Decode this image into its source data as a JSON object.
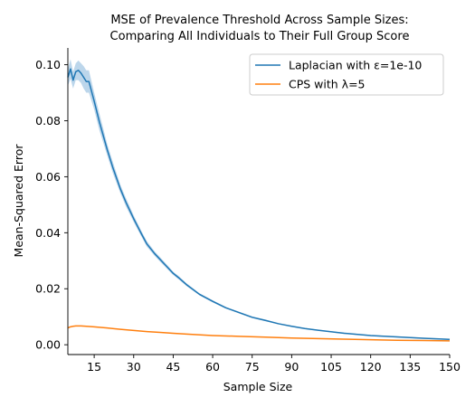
{
  "chart_data": {
    "type": "line",
    "title_lines": [
      "MSE of Prevalence Threshold Across Sample Sizes:",
      "Comparing All Individuals to Their Full Group Score"
    ],
    "xlabel": "Sample Size",
    "ylabel": "Mean-Squared Error",
    "xlim": [
      5,
      150
    ],
    "ylim": [
      -0.0035,
      0.106
    ],
    "xticks": [
      15,
      30,
      45,
      60,
      75,
      90,
      105,
      120,
      135,
      150
    ],
    "yticks": [
      0.0,
      0.02,
      0.04,
      0.06,
      0.08,
      0.1
    ],
    "ytick_labels": [
      "0.00",
      "0.02",
      "0.04",
      "0.06",
      "0.08",
      "0.10"
    ],
    "grid": false,
    "legend_position": "top-right",
    "series": [
      {
        "name": "Laplacian with ε=1e-10",
        "color": "#1f77b4",
        "band_color": "#a6c8e4",
        "x": [
          5,
          6,
          7,
          8,
          9,
          10,
          11,
          12,
          13,
          15,
          17,
          20,
          22,
          25,
          27,
          30,
          33,
          35,
          38,
          40,
          43,
          45,
          47,
          50,
          55,
          60,
          65,
          70,
          75,
          80,
          85,
          90,
          95,
          100,
          110,
          120,
          130,
          140,
          150
        ],
        "values": [
          0.0955,
          0.0985,
          0.0945,
          0.0975,
          0.098,
          0.097,
          0.0955,
          0.094,
          0.094,
          0.087,
          0.0795,
          0.0695,
          0.0635,
          0.0555,
          0.051,
          0.045,
          0.0395,
          0.036,
          0.0325,
          0.0305,
          0.0275,
          0.0255,
          0.024,
          0.0215,
          0.018,
          0.0155,
          0.0132,
          0.0115,
          0.0098,
          0.0087,
          0.0075,
          0.0066,
          0.0058,
          0.0052,
          0.0041,
          0.0033,
          0.0028,
          0.0023,
          0.0019
        ],
        "band_lower": [
          0.0925,
          0.095,
          0.0915,
          0.0945,
          0.0945,
          0.0935,
          0.0915,
          0.09,
          0.09,
          0.084,
          0.0765,
          0.0675,
          0.0615,
          0.054,
          0.0495,
          0.0438,
          0.0385,
          0.035,
          0.0317,
          0.0297,
          0.0268,
          0.0249,
          0.0234,
          0.021,
          0.0176,
          0.0151,
          0.0129,
          0.0112,
          0.0095,
          0.0084,
          0.0073,
          0.0064,
          0.0056,
          0.005,
          0.0039,
          0.0031,
          0.0026,
          0.0021,
          0.0017
        ],
        "band_upper": [
          0.0985,
          0.102,
          0.0975,
          0.1005,
          0.1015,
          0.1005,
          0.0995,
          0.098,
          0.098,
          0.09,
          0.0825,
          0.0715,
          0.0655,
          0.057,
          0.0525,
          0.0462,
          0.0405,
          0.037,
          0.0333,
          0.0313,
          0.0282,
          0.0261,
          0.0246,
          0.022,
          0.0184,
          0.0159,
          0.0135,
          0.0118,
          0.0101,
          0.009,
          0.0077,
          0.0068,
          0.006,
          0.0054,
          0.0043,
          0.0035,
          0.003,
          0.0025,
          0.0021
        ]
      },
      {
        "name": "CPS with λ=5",
        "color": "#ff7f0e",
        "x": [
          5,
          6,
          7,
          8,
          10,
          12,
          15,
          20,
          25,
          30,
          35,
          40,
          45,
          50,
          60,
          70,
          80,
          90,
          100,
          110,
          120,
          130,
          140,
          150
        ],
        "values": [
          0.006,
          0.0064,
          0.0066,
          0.0067,
          0.0067,
          0.0066,
          0.0064,
          0.006,
          0.0055,
          0.0051,
          0.0047,
          0.0044,
          0.0041,
          0.0038,
          0.0033,
          0.003,
          0.0027,
          0.0024,
          0.0022,
          0.002,
          0.0018,
          0.0016,
          0.0015,
          0.0014
        ]
      }
    ]
  }
}
